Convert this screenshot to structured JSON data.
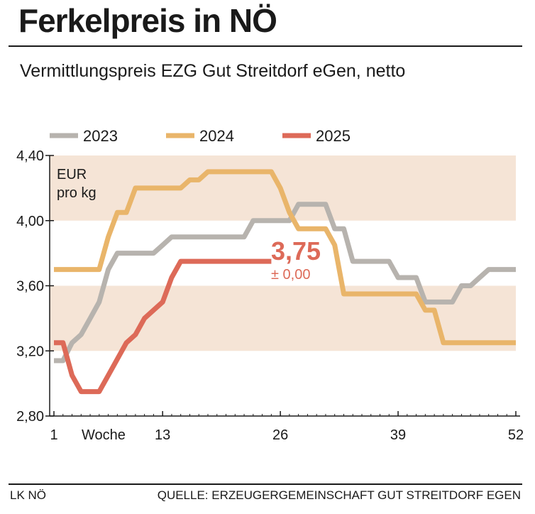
{
  "header": {
    "title": "Ferkelpreis in NÖ",
    "subtitle": "Vermittlungspreis EZG Gut Streitdorf eGen, netto"
  },
  "footer": {
    "left": "LK NÖ",
    "right": "QUELLE: ERZEUGERGEMEINSCHAFT GUT STREITDORF EGEN"
  },
  "colors": {
    "2023": "#b7b3ae",
    "2024": "#e9b56a",
    "2025": "#dd6a58",
    "band": "#f5e4d6",
    "axis": "#1a1a1a"
  },
  "chart_data": {
    "type": "line",
    "title": "Ferkelpreis in NÖ",
    "unit_label_line1": "EUR",
    "unit_label_line2": "pro kg",
    "xlabel": "Woche",
    "ylabel": "EUR pro kg",
    "xlim": [
      1,
      52
    ],
    "ylim": [
      2.8,
      4.4
    ],
    "x_ticks": [
      1,
      13,
      26,
      39,
      52
    ],
    "x_tick_labels": [
      "1",
      "13",
      "26",
      "39",
      "52"
    ],
    "y_ticks": [
      2.8,
      3.2,
      3.6,
      4.0,
      4.4
    ],
    "y_tick_labels": [
      "2,80",
      "3,20",
      "3,60",
      "4,00",
      "4,40"
    ],
    "bands": [
      [
        3.2,
        3.6
      ],
      [
        4.0,
        4.4
      ]
    ],
    "legend_position": "top",
    "series": [
      {
        "name": "2023",
        "color_key": "2023",
        "points": [
          [
            1,
            3.14
          ],
          [
            2,
            3.14
          ],
          [
            3,
            3.25
          ],
          [
            4,
            3.3
          ],
          [
            5,
            3.4
          ],
          [
            6,
            3.5
          ],
          [
            7,
            3.7
          ],
          [
            8,
            3.8
          ],
          [
            9,
            3.8
          ],
          [
            10,
            3.8
          ],
          [
            11,
            3.8
          ],
          [
            12,
            3.8
          ],
          [
            13,
            3.85
          ],
          [
            14,
            3.9
          ],
          [
            15,
            3.9
          ],
          [
            16,
            3.9
          ],
          [
            17,
            3.9
          ],
          [
            18,
            3.9
          ],
          [
            19,
            3.9
          ],
          [
            20,
            3.9
          ],
          [
            21,
            3.9
          ],
          [
            22,
            3.9
          ],
          [
            23,
            4.0
          ],
          [
            24,
            4.0
          ],
          [
            25,
            4.0
          ],
          [
            26,
            4.0
          ],
          [
            27,
            4.0
          ],
          [
            28,
            4.1
          ],
          [
            29,
            4.1
          ],
          [
            30,
            4.1
          ],
          [
            31,
            4.1
          ],
          [
            32,
            3.95
          ],
          [
            33,
            3.95
          ],
          [
            34,
            3.75
          ],
          [
            35,
            3.75
          ],
          [
            36,
            3.75
          ],
          [
            37,
            3.75
          ],
          [
            38,
            3.75
          ],
          [
            39,
            3.65
          ],
          [
            40,
            3.65
          ],
          [
            41,
            3.65
          ],
          [
            42,
            3.5
          ],
          [
            43,
            3.5
          ],
          [
            44,
            3.5
          ],
          [
            45,
            3.5
          ],
          [
            46,
            3.6
          ],
          [
            47,
            3.6
          ],
          [
            48,
            3.65
          ],
          [
            49,
            3.7
          ],
          [
            50,
            3.7
          ],
          [
            51,
            3.7
          ],
          [
            52,
            3.7
          ]
        ]
      },
      {
        "name": "2024",
        "color_key": "2024",
        "points": [
          [
            1,
            3.7
          ],
          [
            2,
            3.7
          ],
          [
            3,
            3.7
          ],
          [
            4,
            3.7
          ],
          [
            5,
            3.7
          ],
          [
            6,
            3.7
          ],
          [
            7,
            3.9
          ],
          [
            8,
            4.05
          ],
          [
            9,
            4.05
          ],
          [
            10,
            4.2
          ],
          [
            11,
            4.2
          ],
          [
            12,
            4.2
          ],
          [
            13,
            4.2
          ],
          [
            14,
            4.2
          ],
          [
            15,
            4.2
          ],
          [
            16,
            4.25
          ],
          [
            17,
            4.25
          ],
          [
            18,
            4.3
          ],
          [
            19,
            4.3
          ],
          [
            20,
            4.3
          ],
          [
            21,
            4.3
          ],
          [
            22,
            4.3
          ],
          [
            23,
            4.3
          ],
          [
            24,
            4.3
          ],
          [
            25,
            4.3
          ],
          [
            26,
            4.2
          ],
          [
            27,
            4.05
          ],
          [
            28,
            3.95
          ],
          [
            29,
            3.95
          ],
          [
            30,
            3.95
          ],
          [
            31,
            3.95
          ],
          [
            32,
            3.85
          ],
          [
            33,
            3.55
          ],
          [
            34,
            3.55
          ],
          [
            35,
            3.55
          ],
          [
            36,
            3.55
          ],
          [
            37,
            3.55
          ],
          [
            38,
            3.55
          ],
          [
            39,
            3.55
          ],
          [
            40,
            3.55
          ],
          [
            41,
            3.55
          ],
          [
            42,
            3.45
          ],
          [
            43,
            3.45
          ],
          [
            44,
            3.25
          ],
          [
            45,
            3.25
          ],
          [
            46,
            3.25
          ],
          [
            47,
            3.25
          ],
          [
            48,
            3.25
          ],
          [
            49,
            3.25
          ],
          [
            50,
            3.25
          ],
          [
            51,
            3.25
          ],
          [
            52,
            3.25
          ]
        ]
      },
      {
        "name": "2025",
        "color_key": "2025",
        "points": [
          [
            1,
            3.25
          ],
          [
            2,
            3.25
          ],
          [
            3,
            3.05
          ],
          [
            4,
            2.95
          ],
          [
            5,
            2.95
          ],
          [
            6,
            2.95
          ],
          [
            7,
            3.05
          ],
          [
            8,
            3.15
          ],
          [
            9,
            3.25
          ],
          [
            10,
            3.3
          ],
          [
            11,
            3.4
          ],
          [
            12,
            3.45
          ],
          [
            13,
            3.5
          ],
          [
            14,
            3.65
          ],
          [
            15,
            3.75
          ],
          [
            16,
            3.75
          ],
          [
            17,
            3.75
          ],
          [
            18,
            3.75
          ],
          [
            19,
            3.75
          ],
          [
            20,
            3.75
          ],
          [
            21,
            3.75
          ],
          [
            22,
            3.75
          ],
          [
            23,
            3.75
          ],
          [
            24,
            3.75
          ],
          [
            25,
            3.75
          ]
        ]
      }
    ],
    "annotation": {
      "value": "3,75",
      "change": "± 0,00",
      "series": "2025"
    }
  }
}
